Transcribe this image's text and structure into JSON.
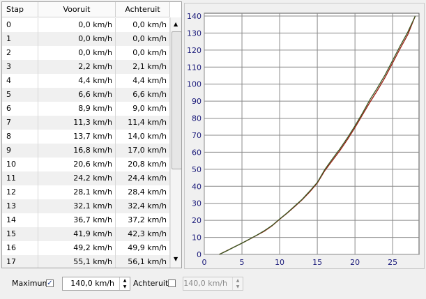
{
  "table": {
    "headers": [
      "Stap",
      "Vooruit",
      "Achteruit"
    ],
    "rows": [
      [
        "0",
        "0,0 km/h",
        "0,0 km/h"
      ],
      [
        "1",
        "0,0 km/h",
        "0,0 km/h"
      ],
      [
        "2",
        "0,0 km/h",
        "0,0 km/h"
      ],
      [
        "3",
        "2,2 km/h",
        "2,1 km/h"
      ],
      [
        "4",
        "4,4 km/h",
        "4,4 km/h"
      ],
      [
        "5",
        "6,6 km/h",
        "6,6 km/h"
      ],
      [
        "6",
        "8,9 km/h",
        "9,0 km/h"
      ],
      [
        "7",
        "11,3 km/h",
        "11,4 km/h"
      ],
      [
        "8",
        "13,7 km/h",
        "14,0 km/h"
      ],
      [
        "9",
        "16,8 km/h",
        "17,0 km/h"
      ],
      [
        "10",
        "20,6 km/h",
        "20,8 km/h"
      ],
      [
        "11",
        "24,2 km/h",
        "24,4 km/h"
      ],
      [
        "12",
        "28,1 km/h",
        "28,4 km/h"
      ],
      [
        "13",
        "32,1 km/h",
        "32,4 km/h"
      ],
      [
        "14",
        "36,7 km/h",
        "37,2 km/h"
      ],
      [
        "15",
        "41,9 km/h",
        "42,3 km/h"
      ],
      [
        "16",
        "49,2 km/h",
        "49,9 km/h"
      ],
      [
        "17",
        "55,1 km/h",
        "56,1 km/h"
      ]
    ]
  },
  "chart": {
    "type": "line",
    "x": [
      2,
      3,
      4,
      5,
      6,
      7,
      8,
      9,
      10,
      11,
      12,
      13,
      14,
      15,
      16,
      17,
      18,
      19,
      20,
      21,
      22,
      23,
      24,
      25,
      26,
      27,
      28
    ],
    "series": [
      {
        "name": "Vooruit",
        "color": "#9a1e12",
        "values": [
          0,
          2.2,
          4.4,
          6.6,
          8.9,
          11.3,
          13.7,
          16.8,
          20.6,
          24.2,
          28.1,
          32.1,
          36.7,
          41.9,
          49.2,
          55.1,
          61,
          67.5,
          74.5,
          82,
          89.5,
          96.5,
          104,
          112.5,
          121,
          129,
          140
        ]
      },
      {
        "name": "Achteruit",
        "color": "#3d5a26",
        "values": [
          0,
          2.1,
          4.4,
          6.6,
          9.0,
          11.4,
          14.0,
          17.0,
          20.8,
          24.4,
          28.4,
          32.4,
          37.2,
          42.3,
          49.9,
          56.1,
          62,
          68.5,
          75.5,
          83,
          91,
          98,
          105.5,
          114,
          122.5,
          130.5,
          140
        ]
      }
    ],
    "xlim": [
      0,
      28.5
    ],
    "xticks": [
      0,
      5,
      10,
      15,
      20,
      25
    ],
    "ylim": [
      0,
      140
    ],
    "yticks": [
      0,
      10,
      20,
      30,
      40,
      50,
      60,
      70,
      80,
      90,
      100,
      110,
      120,
      130,
      140
    ],
    "grid": true
  },
  "controls": {
    "maximum_label": "Maximum",
    "maximum_checked": true,
    "maximum_value": "140,0 km/h",
    "reverse_label": "Achteruit",
    "reverse_checked": false,
    "reverse_value": "140,0 km/h"
  }
}
